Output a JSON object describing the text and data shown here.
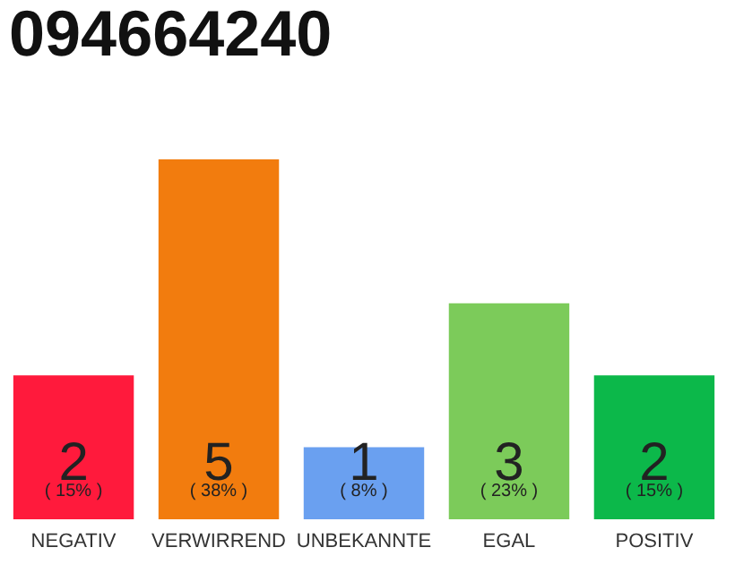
{
  "chart_data": {
    "type": "bar",
    "title": "094664240",
    "categories": [
      "NEGATIV",
      "VERWIRREND",
      "UNBEKANNTE",
      "EGAL",
      "POSITIV"
    ],
    "values": [
      2,
      5,
      1,
      3,
      2
    ],
    "colors": [
      "#ff1a3c",
      "#f27c0e",
      "#6aa0f0",
      "#7ccb5a",
      "#0cb84a"
    ],
    "data_labels": true,
    "annotations": [
      "( 15% )",
      "( 38% )",
      "( 8% )",
      "( 23% )",
      "( 15% )"
    ]
  }
}
